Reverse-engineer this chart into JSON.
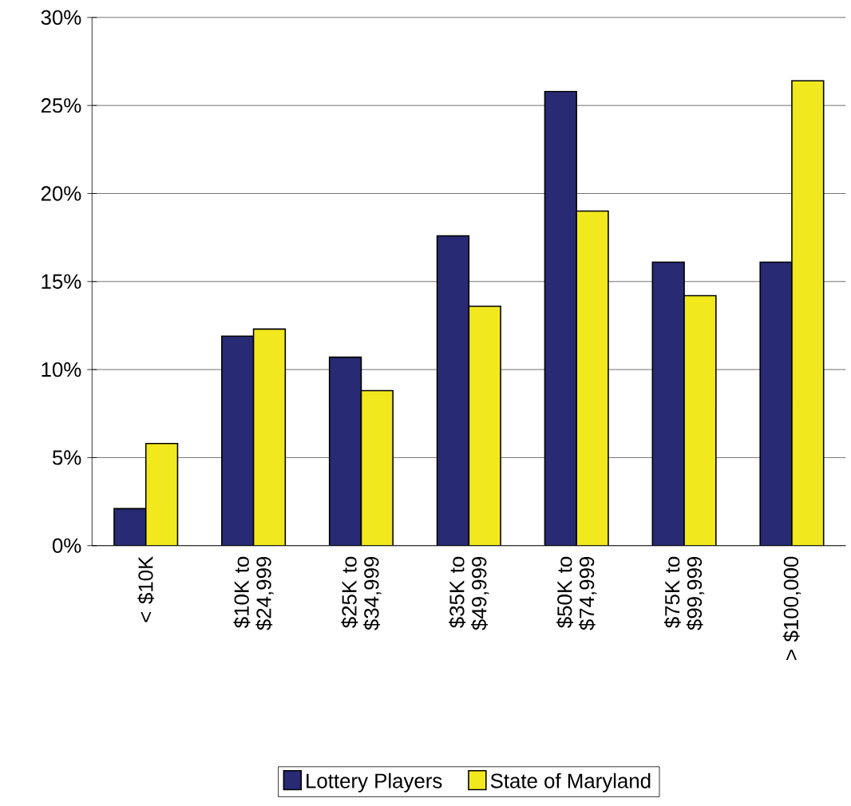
{
  "chart_data": {
    "type": "bar",
    "categories": [
      "< $10K",
      "$10K to $24,999",
      "$25K to $34,999",
      "$35K to $49,999",
      "$50K to $74,999",
      "$75K to $99,999",
      "> $100,000"
    ],
    "series": [
      {
        "name": "Lottery Players",
        "color": "#282a73",
        "values": [
          2.1,
          11.9,
          10.7,
          17.6,
          25.8,
          16.1,
          16.1
        ]
      },
      {
        "name": "State of Maryland",
        "color": "#f2e81e",
        "values": [
          5.8,
          12.3,
          8.8,
          13.6,
          19.0,
          14.2,
          26.4
        ]
      }
    ],
    "ylim": [
      0,
      30
    ],
    "yticks": [
      {
        "value": 0,
        "label": "0%"
      },
      {
        "value": 5,
        "label": "5%"
      },
      {
        "value": 10,
        "label": "10%"
      },
      {
        "value": 15,
        "label": "15%"
      },
      {
        "value": 20,
        "label": "20%"
      },
      {
        "value": 25,
        "label": "25%"
      },
      {
        "value": 30,
        "label": "30%"
      }
    ],
    "grid": "y",
    "legend": "bottom"
  }
}
